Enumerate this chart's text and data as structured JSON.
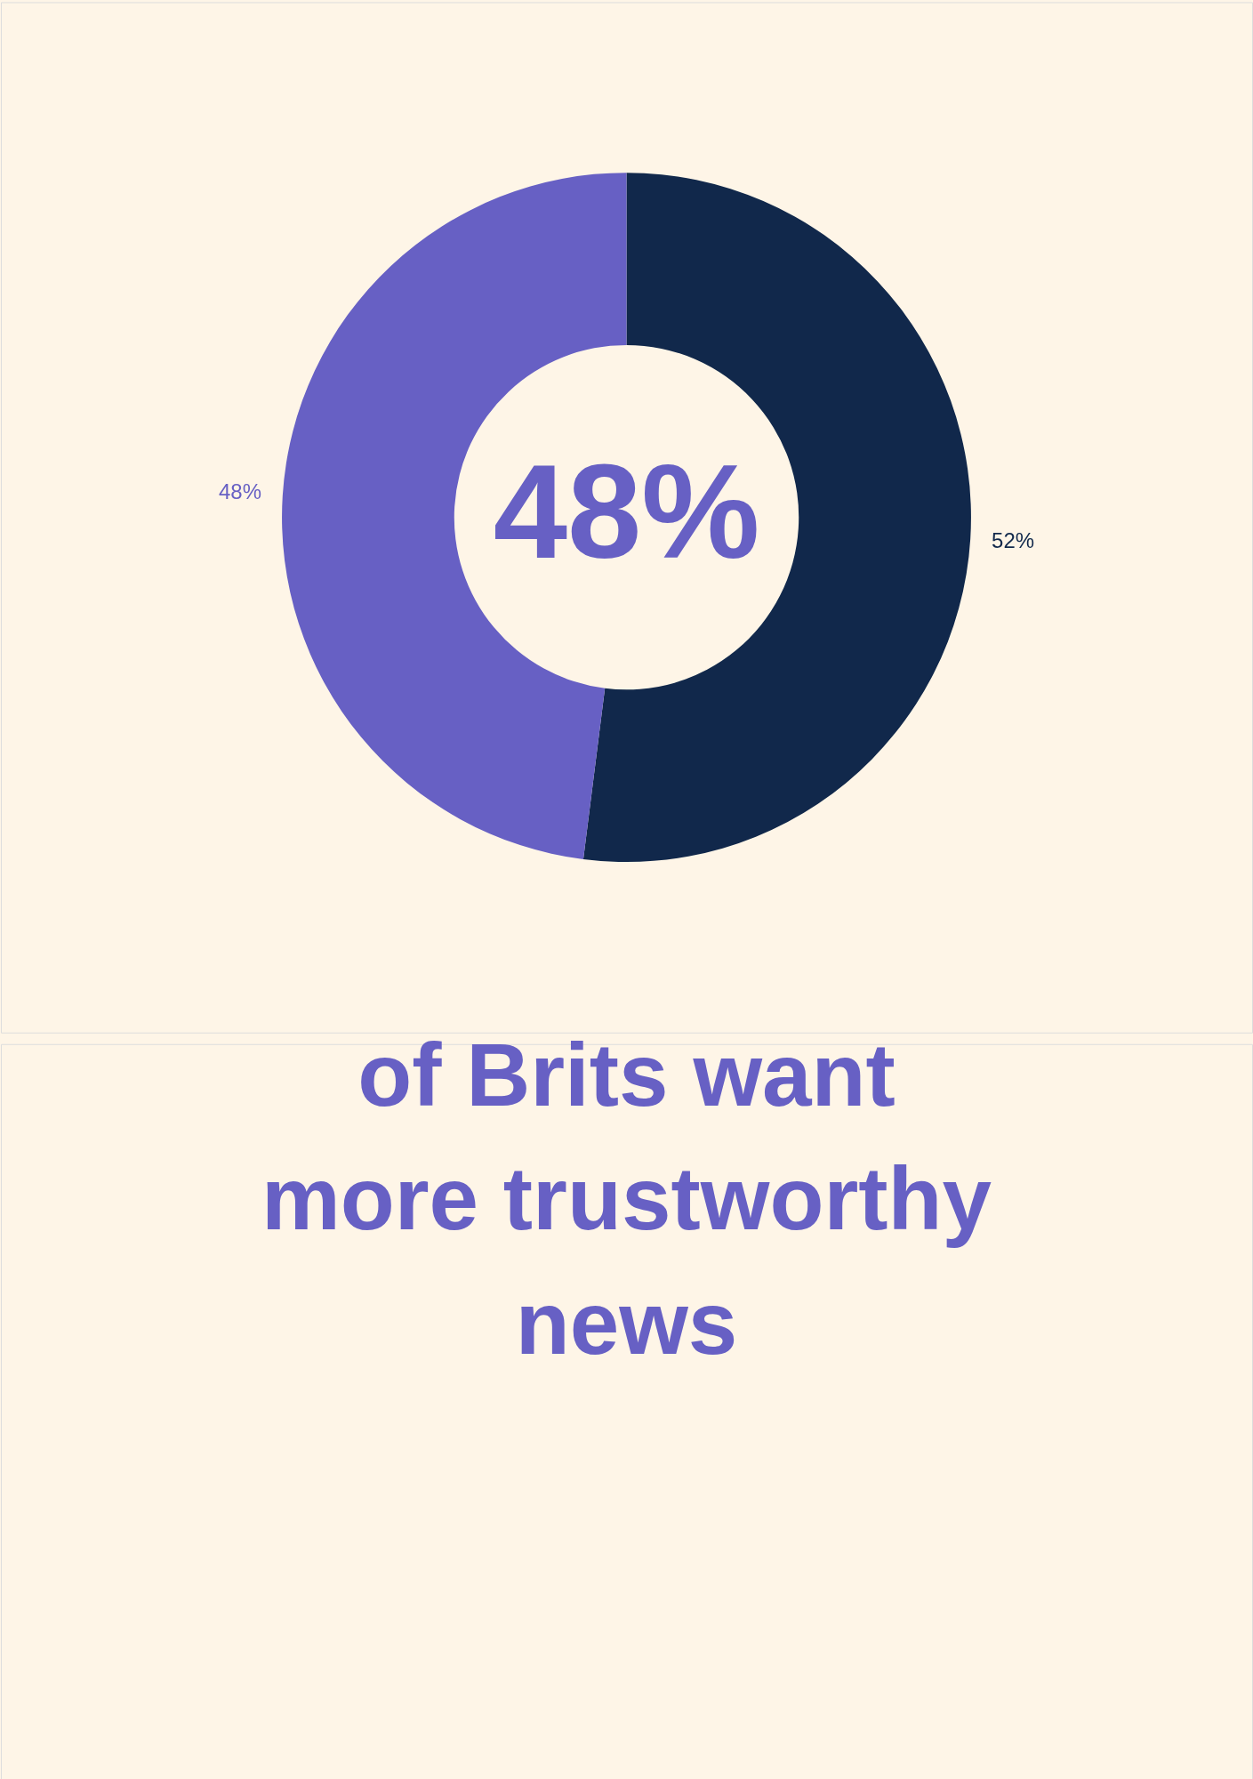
{
  "chart_data": {
    "type": "donut",
    "categories": [
      null,
      null
    ],
    "values": [
      52,
      48
    ],
    "colors": [
      "#11284b",
      "#6760c4"
    ],
    "value_labels": [
      "52%",
      "48%"
    ],
    "annotations": [
      "48%",
      "of Brits want\nmore trustworthy\nnews"
    ]
  }
}
